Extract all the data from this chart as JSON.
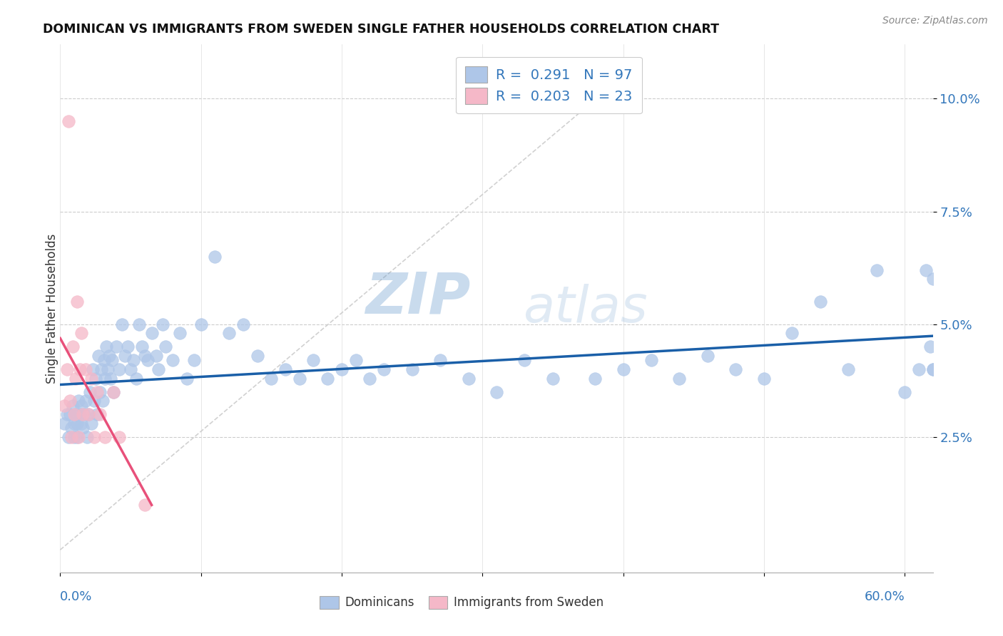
{
  "title": "DOMINICAN VS IMMIGRANTS FROM SWEDEN SINGLE FATHER HOUSEHOLDS CORRELATION CHART",
  "source": "Source: ZipAtlas.com",
  "ylabel": "Single Father Households",
  "ytick_vals": [
    0.025,
    0.05,
    0.075,
    0.1
  ],
  "ytick_labels": [
    "2.5%",
    "5.0%",
    "7.5%",
    "10.0%"
  ],
  "xlim": [
    0.0,
    0.62
  ],
  "ylim": [
    -0.005,
    0.112
  ],
  "watermark": "ZIPatlas",
  "blue_color": "#aec6e8",
  "pink_color": "#f5b8c8",
  "blue_line_color": "#1a5fa8",
  "pink_line_color": "#e8507a",
  "dom_x": [
    0.003,
    0.005,
    0.006,
    0.007,
    0.008,
    0.009,
    0.01,
    0.01,
    0.011,
    0.012,
    0.012,
    0.013,
    0.014,
    0.015,
    0.015,
    0.016,
    0.017,
    0.018,
    0.019,
    0.02,
    0.021,
    0.022,
    0.023,
    0.024,
    0.025,
    0.026,
    0.027,
    0.028,
    0.029,
    0.03,
    0.031,
    0.032,
    0.033,
    0.034,
    0.035,
    0.036,
    0.037,
    0.038,
    0.04,
    0.042,
    0.044,
    0.046,
    0.048,
    0.05,
    0.052,
    0.054,
    0.056,
    0.058,
    0.06,
    0.062,
    0.065,
    0.068,
    0.07,
    0.073,
    0.075,
    0.08,
    0.085,
    0.09,
    0.095,
    0.1,
    0.11,
    0.12,
    0.13,
    0.14,
    0.15,
    0.16,
    0.17,
    0.18,
    0.19,
    0.2,
    0.21,
    0.22,
    0.23,
    0.25,
    0.27,
    0.29,
    0.31,
    0.33,
    0.35,
    0.38,
    0.4,
    0.42,
    0.44,
    0.46,
    0.48,
    0.5,
    0.52,
    0.54,
    0.56,
    0.58,
    0.6,
    0.61,
    0.615,
    0.618,
    0.62,
    0.62,
    0.62
  ],
  "dom_y": [
    0.028,
    0.03,
    0.025,
    0.03,
    0.027,
    0.032,
    0.025,
    0.028,
    0.03,
    0.025,
    0.028,
    0.033,
    0.03,
    0.028,
    0.032,
    0.027,
    0.03,
    0.033,
    0.025,
    0.03,
    0.035,
    0.028,
    0.04,
    0.033,
    0.038,
    0.03,
    0.043,
    0.035,
    0.04,
    0.033,
    0.042,
    0.038,
    0.045,
    0.04,
    0.043,
    0.038,
    0.042,
    0.035,
    0.045,
    0.04,
    0.05,
    0.043,
    0.045,
    0.04,
    0.042,
    0.038,
    0.05,
    0.045,
    0.043,
    0.042,
    0.048,
    0.043,
    0.04,
    0.05,
    0.045,
    0.042,
    0.048,
    0.038,
    0.042,
    0.05,
    0.065,
    0.048,
    0.05,
    0.043,
    0.038,
    0.04,
    0.038,
    0.042,
    0.038,
    0.04,
    0.042,
    0.038,
    0.04,
    0.04,
    0.042,
    0.038,
    0.035,
    0.042,
    0.038,
    0.038,
    0.04,
    0.042,
    0.038,
    0.043,
    0.04,
    0.038,
    0.048,
    0.055,
    0.04,
    0.062,
    0.035,
    0.04,
    0.062,
    0.045,
    0.04,
    0.06,
    0.04
  ],
  "swe_x": [
    0.003,
    0.005,
    0.006,
    0.007,
    0.008,
    0.009,
    0.01,
    0.011,
    0.012,
    0.013,
    0.014,
    0.015,
    0.016,
    0.018,
    0.02,
    0.022,
    0.024,
    0.026,
    0.028,
    0.032,
    0.038,
    0.042,
    0.06
  ],
  "swe_y": [
    0.032,
    0.04,
    0.095,
    0.033,
    0.025,
    0.045,
    0.03,
    0.038,
    0.055,
    0.025,
    0.04,
    0.048,
    0.03,
    0.04,
    0.03,
    0.038,
    0.025,
    0.035,
    0.03,
    0.025,
    0.035,
    0.025,
    0.01
  ]
}
